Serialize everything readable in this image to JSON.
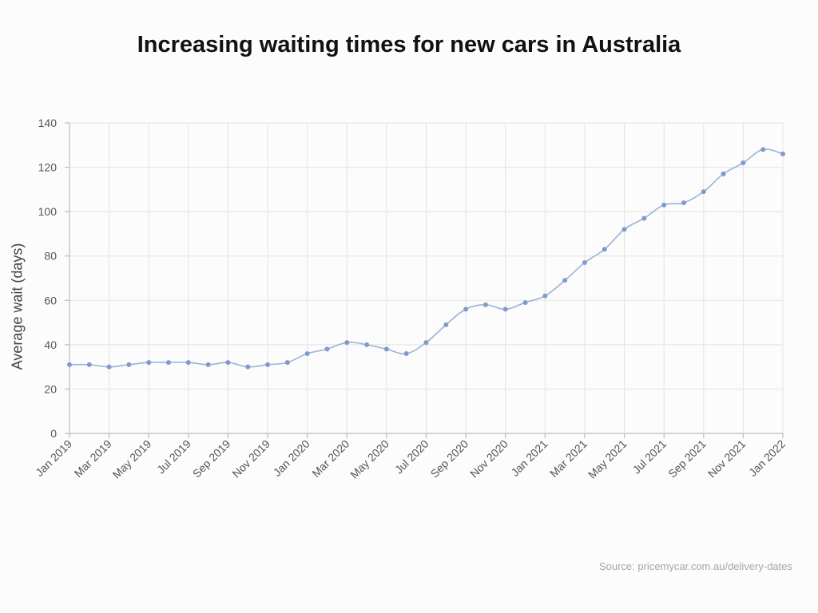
{
  "title": "Increasing waiting times for new cars in Australia",
  "source": "Source: pricemycar.com.au/delivery-dates",
  "colors": {
    "line": "#9db3d6",
    "marker": "#7f9bcc",
    "background": "#fbfcfb"
  },
  "chart_data": {
    "type": "line",
    "title": "Increasing waiting times for new cars in Australia",
    "xlabel": "",
    "ylabel": "Average wait (days)",
    "ylim": [
      0,
      140
    ],
    "yticks": [
      0,
      20,
      40,
      60,
      80,
      100,
      120,
      140
    ],
    "grid": true,
    "x": [
      "Jan 2019",
      "Feb 2019",
      "Mar 2019",
      "Apr 2019",
      "May 2019",
      "Jun 2019",
      "Jul 2019",
      "Aug 2019",
      "Sep 2019",
      "Oct 2019",
      "Nov 2019",
      "Dec 2019",
      "Jan 2020",
      "Feb 2020",
      "Mar 2020",
      "Apr 2020",
      "May 2020",
      "Jun 2020",
      "Jul 2020",
      "Aug 2020",
      "Sep 2020",
      "Oct 2020",
      "Nov 2020",
      "Dec 2020",
      "Jan 2021",
      "Feb 2021",
      "Mar 2021",
      "Apr 2021",
      "May 2021",
      "Jun 2021",
      "Jul 2021",
      "Aug 2021",
      "Sep 2021",
      "Oct 2021",
      "Nov 2021",
      "Dec 2021",
      "Jan 2022"
    ],
    "xtick_labels": [
      "Jan 2019",
      "Mar 2019",
      "May 2019",
      "Jul 2019",
      "Sep 2019",
      "Nov 2019",
      "Jan 2020",
      "Mar 2020",
      "May 2020",
      "Jul 2020",
      "Sep 2020",
      "Nov 2020",
      "Jan 2021",
      "Mar 2021",
      "May 2021",
      "Jul 2021",
      "Sep 2021",
      "Nov 2021",
      "Jan 2022"
    ],
    "series": [
      {
        "values": [
          31,
          31,
          30,
          31,
          32,
          32,
          32,
          31,
          32,
          30,
          31,
          32,
          36,
          38,
          41,
          40,
          38,
          36,
          41,
          49,
          56,
          58,
          56,
          59,
          62,
          69,
          77,
          83,
          92,
          97,
          103,
          104,
          109,
          117,
          122,
          128,
          126
        ]
      }
    ]
  }
}
